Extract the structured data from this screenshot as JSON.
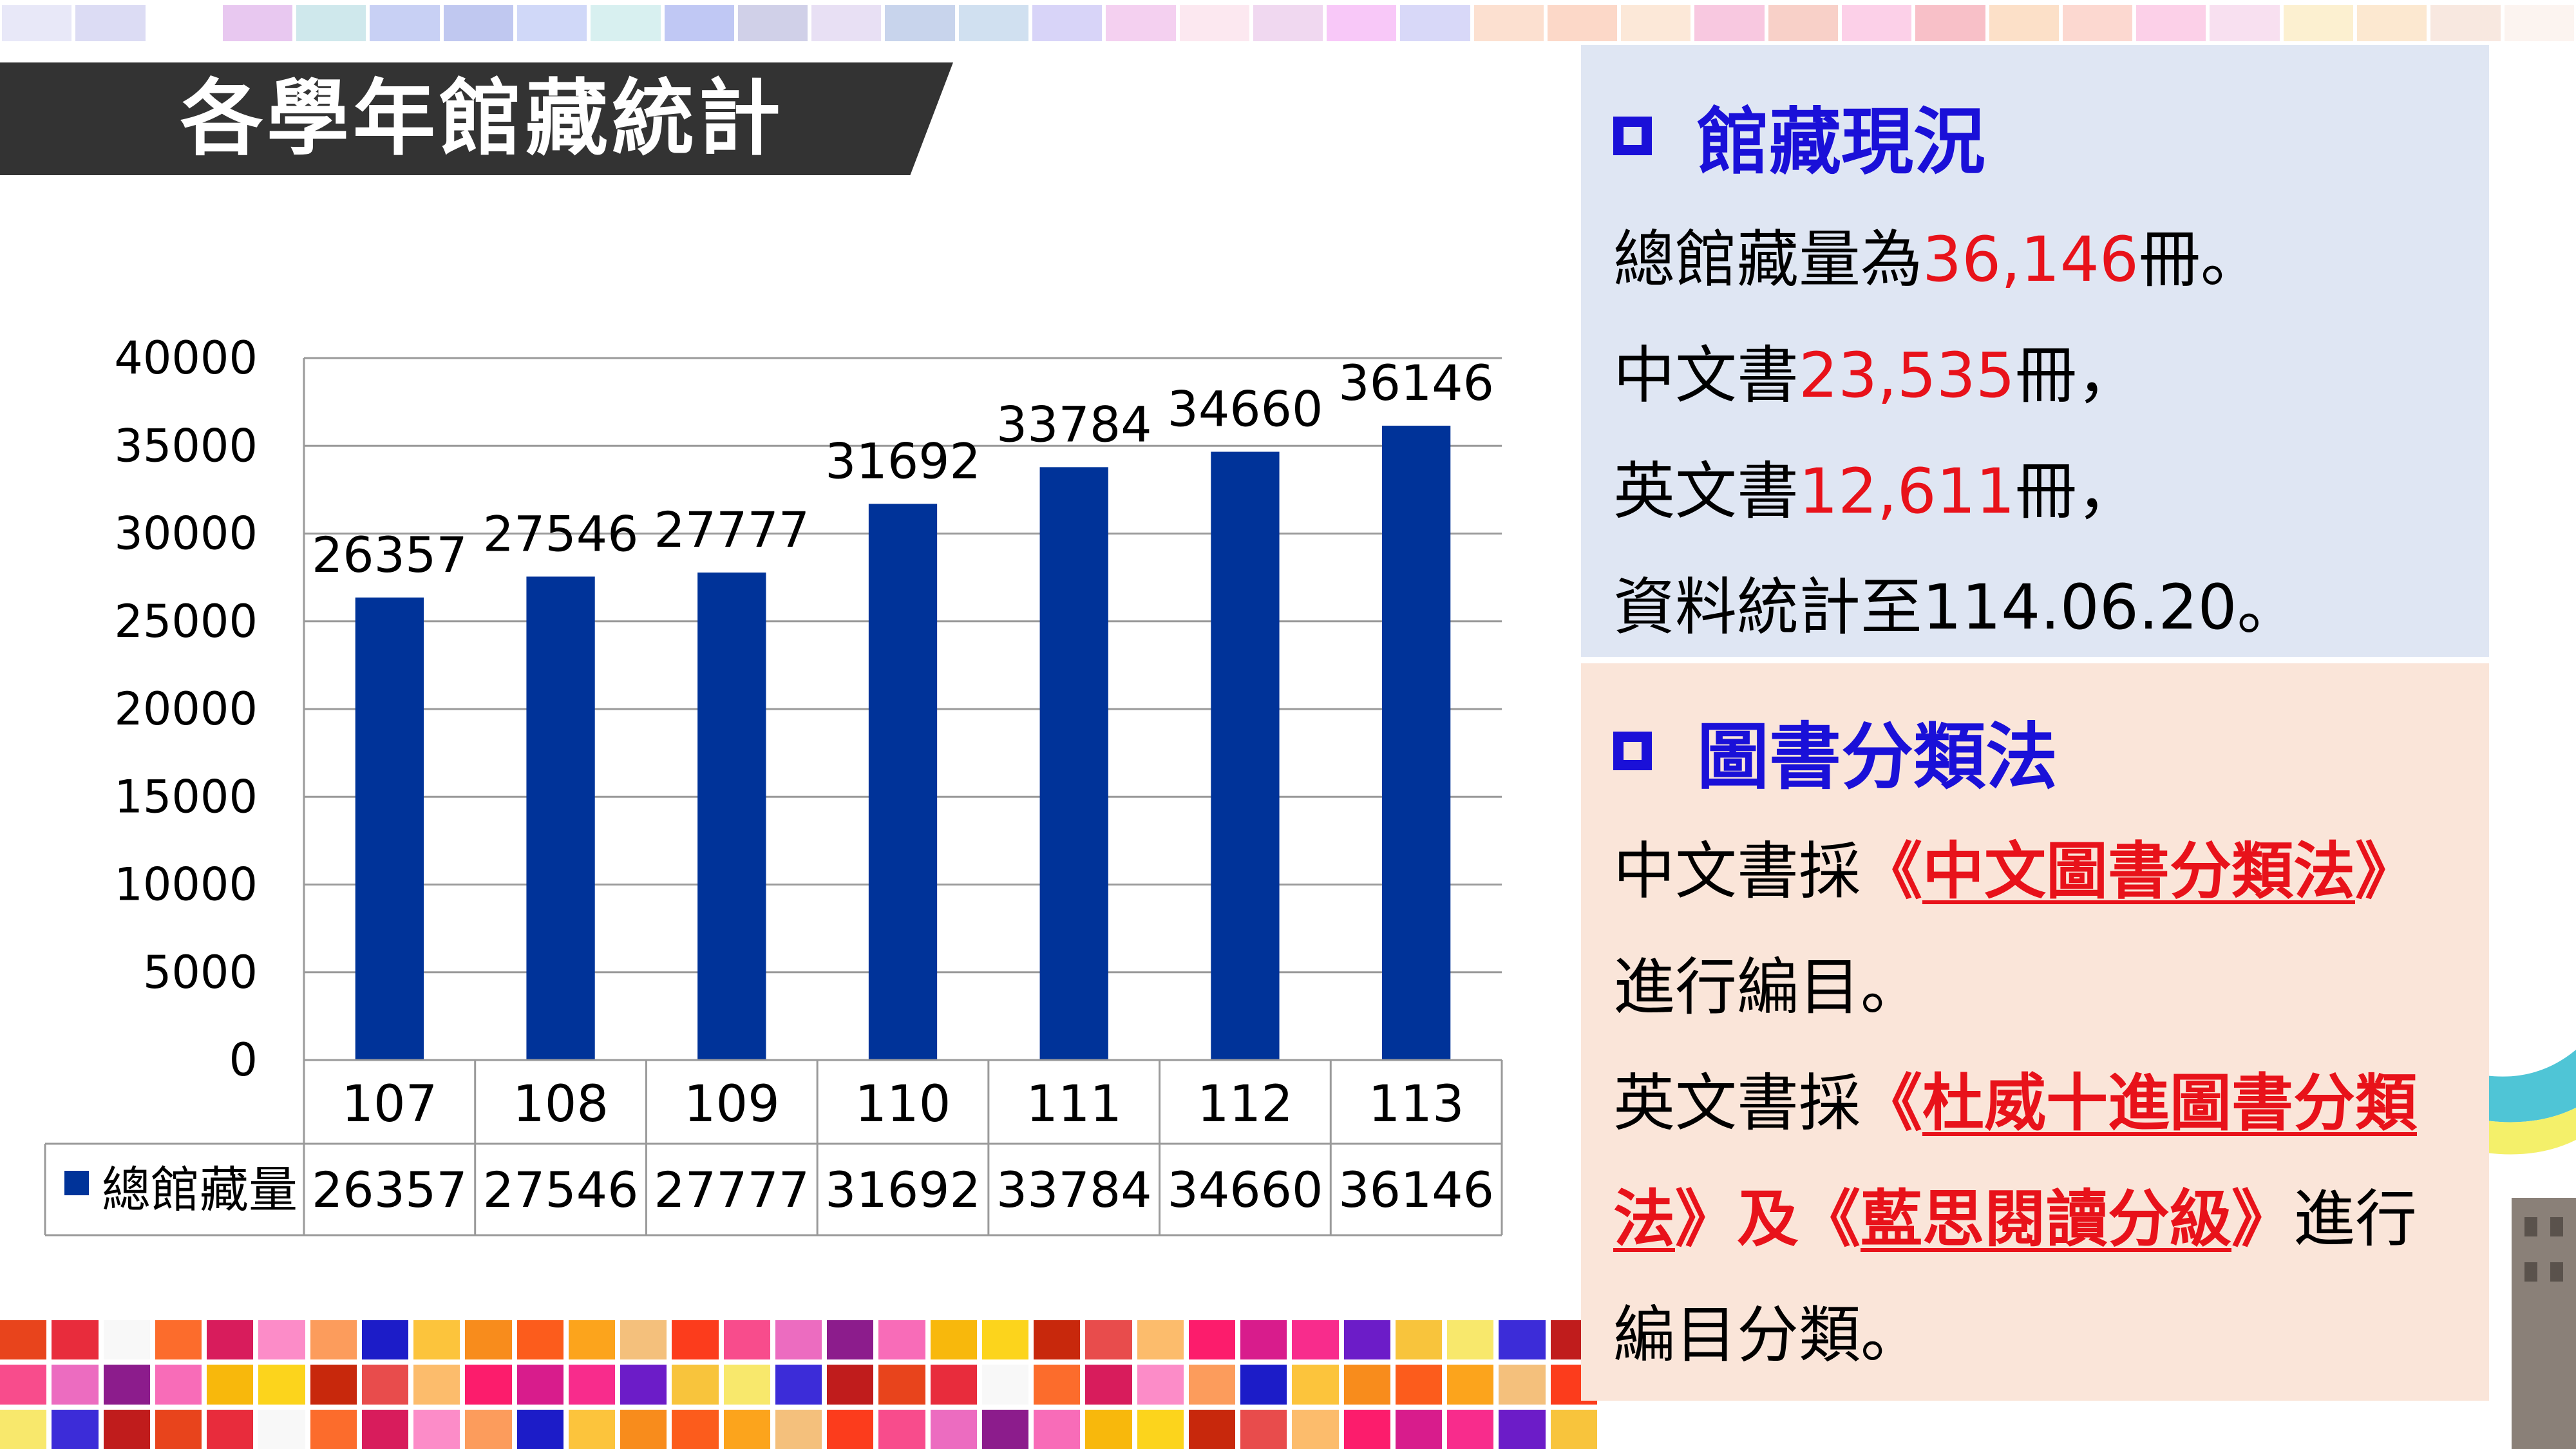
{
  "title": "各學年館藏統計",
  "chart_data": {
    "type": "bar",
    "categories": [
      "107",
      "108",
      "109",
      "110",
      "111",
      "112",
      "113"
    ],
    "series": [
      {
        "name": "總館藏量",
        "values": [
          26357,
          27546,
          27777,
          31692,
          33784,
          34660,
          36146
        ]
      }
    ],
    "ylim": [
      0,
      40000
    ],
    "yticks": [
      "0",
      "5000",
      "10000",
      "15000",
      "20000",
      "25000",
      "30000",
      "35000",
      "40000"
    ],
    "data_labels": [
      "26357",
      "27546",
      "27777",
      "31692",
      "33784",
      "34660",
      "36146"
    ],
    "grid": true,
    "data_table": true,
    "bar_color": "#003399"
  },
  "stats_panel": {
    "heading": "館藏現況",
    "line1_prefix": "總館藏量為",
    "line1_value": "36,146",
    "line1_suffix": "冊。",
    "line2_prefix": "中文書",
    "line2_value": "23,535",
    "line2_suffix": "冊，",
    "line3_prefix": "英文書",
    "line3_value": "12,611",
    "line3_suffix": "冊，",
    "line4": "資料統計至114.06.20。"
  },
  "class_panel": {
    "heading": "圖書分類法",
    "l1_prefix": "中文書採",
    "l1_open": "《",
    "l1_link": "中文圖書分類法",
    "l1_close": "》",
    "l2": "進行編目。",
    "l3_prefix": "英文書採",
    "l3_open": "《",
    "l3_link": "杜威十進圖書分類",
    "l4_link": "法",
    "l4_mid": "》及《",
    "l4_link2": "藍思閱讀分級",
    "l4_close": "》",
    "l4_suffix": "進行",
    "l5": "編目分類。"
  },
  "colors": {
    "heading_blue": "#1a10d8",
    "highlight_red": "#e8121a",
    "stats_bg": "#dfe6f3",
    "class_bg": "#fae5d9",
    "banner_bg": "#333333"
  }
}
